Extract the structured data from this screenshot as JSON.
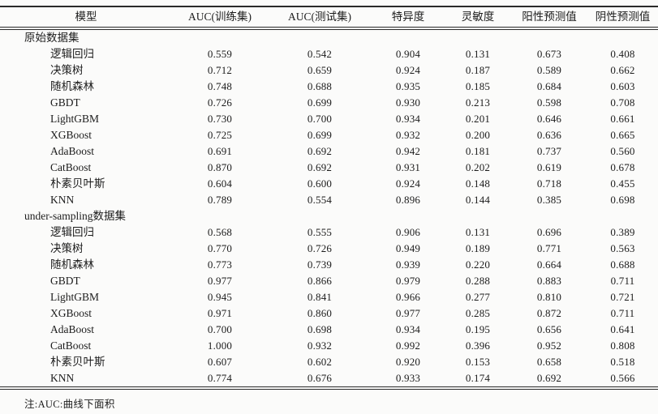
{
  "table": {
    "columns": [
      "模型",
      "AUC(训练集)",
      "AUC(测试集)",
      "特异度",
      "灵敏度",
      "阳性预测值",
      "阴性预测值"
    ],
    "sections": [
      {
        "label": "原始数据集",
        "rows": [
          {
            "model": "逻辑回归",
            "values": [
              "0.559",
              "0.542",
              "0.904",
              "0.131",
              "0.673",
              "0.408"
            ]
          },
          {
            "model": "决策树",
            "values": [
              "0.712",
              "0.659",
              "0.924",
              "0.187",
              "0.589",
              "0.662"
            ]
          },
          {
            "model": "随机森林",
            "values": [
              "0.748",
              "0.688",
              "0.935",
              "0.185",
              "0.684",
              "0.603"
            ]
          },
          {
            "model": "GBDT",
            "values": [
              "0.726",
              "0.699",
              "0.930",
              "0.213",
              "0.598",
              "0.708"
            ]
          },
          {
            "model": "LightGBM",
            "values": [
              "0.730",
              "0.700",
              "0.934",
              "0.201",
              "0.646",
              "0.661"
            ]
          },
          {
            "model": "XGBoost",
            "values": [
              "0.725",
              "0.699",
              "0.932",
              "0.200",
              "0.636",
              "0.665"
            ]
          },
          {
            "model": "AdaBoost",
            "values": [
              "0.691",
              "0.692",
              "0.942",
              "0.181",
              "0.737",
              "0.560"
            ]
          },
          {
            "model": "CatBoost",
            "values": [
              "0.870",
              "0.692",
              "0.931",
              "0.202",
              "0.619",
              "0.678"
            ]
          },
          {
            "model": "朴素贝叶斯",
            "values": [
              "0.604",
              "0.600",
              "0.924",
              "0.148",
              "0.718",
              "0.455"
            ]
          },
          {
            "model": "KNN",
            "values": [
              "0.789",
              "0.554",
              "0.896",
              "0.144",
              "0.385",
              "0.698"
            ]
          }
        ]
      },
      {
        "label": "under-sampling数据集",
        "rows": [
          {
            "model": "逻辑回归",
            "values": [
              "0.568",
              "0.555",
              "0.906",
              "0.131",
              "0.696",
              "0.389"
            ]
          },
          {
            "model": "决策树",
            "values": [
              "0.770",
              "0.726",
              "0.949",
              "0.189",
              "0.771",
              "0.563"
            ]
          },
          {
            "model": "随机森林",
            "values": [
              "0.773",
              "0.739",
              "0.939",
              "0.220",
              "0.664",
              "0.688"
            ]
          },
          {
            "model": "GBDT",
            "values": [
              "0.977",
              "0.866",
              "0.979",
              "0.288",
              "0.883",
              "0.711"
            ]
          },
          {
            "model": "LightGBM",
            "values": [
              "0.945",
              "0.841",
              "0.966",
              "0.277",
              "0.810",
              "0.721"
            ]
          },
          {
            "model": "XGBoost",
            "values": [
              "0.971",
              "0.860",
              "0.977",
              "0.285",
              "0.872",
              "0.711"
            ]
          },
          {
            "model": "AdaBoost",
            "values": [
              "0.700",
              "0.698",
              "0.934",
              "0.195",
              "0.656",
              "0.641"
            ]
          },
          {
            "model": "CatBoost",
            "values": [
              "1.000",
              "0.932",
              "0.992",
              "0.396",
              "0.952",
              "0.808"
            ]
          },
          {
            "model": "朴素贝叶斯",
            "values": [
              "0.607",
              "0.602",
              "0.920",
              "0.153",
              "0.658",
              "0.518"
            ]
          },
          {
            "model": "KNN",
            "values": [
              "0.774",
              "0.676",
              "0.933",
              "0.174",
              "0.692",
              "0.566"
            ]
          }
        ]
      }
    ]
  },
  "footnote": "注:AUC:曲线下面积"
}
